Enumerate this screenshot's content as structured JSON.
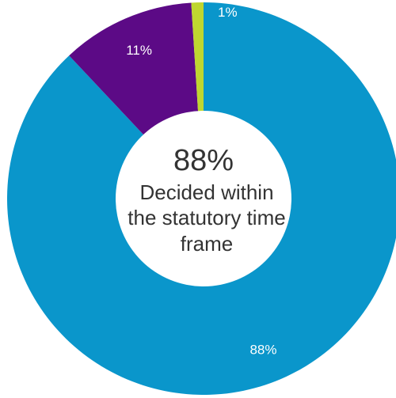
{
  "chart_data": {
    "type": "pie",
    "variant": "donut",
    "categories": [
      "Decided within the statutory time frame",
      "",
      ""
    ],
    "values": [
      88,
      11,
      1
    ],
    "data_labels": [
      "88%",
      "11%",
      "1%"
    ],
    "colors": [
      "#0a96cb",
      "#5c0a86",
      "#bfd630"
    ],
    "center": {
      "value": "88%",
      "lines": [
        "Decided within",
        "the statutory time",
        "frame"
      ]
    },
    "start_angle_deg": 0,
    "direction": "clockwise",
    "legend": "none"
  }
}
